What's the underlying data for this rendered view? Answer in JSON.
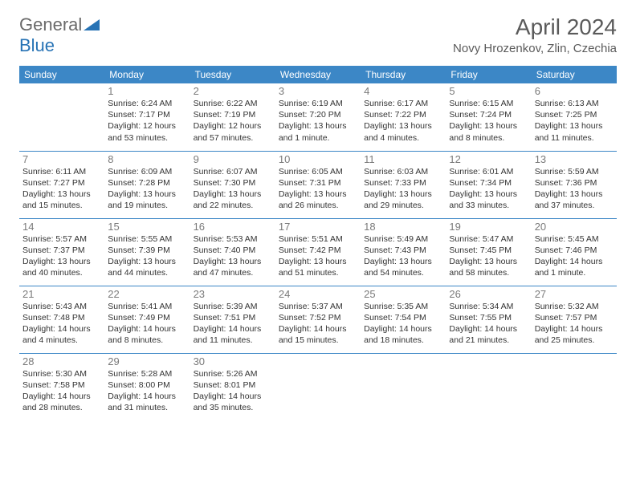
{
  "brand": {
    "part1": "General",
    "part2": "Blue"
  },
  "title": "April 2024",
  "location": "Novy Hrozenkov, Zlin, Czechia",
  "colors": {
    "header_bg": "#3c87c6",
    "header_text": "#ffffff",
    "row_border": "#3c87c6",
    "daynum": "#7a7a7a",
    "body_text": "#333333",
    "title_text": "#5a5a5a",
    "logo_blue": "#2773b5",
    "background": "#ffffff"
  },
  "fonts": {
    "title_size_pt": 21,
    "location_size_pt": 11,
    "dayheader_size_pt": 9,
    "daynum_size_pt": 10,
    "body_size_pt": 8
  },
  "weekdays": [
    "Sunday",
    "Monday",
    "Tuesday",
    "Wednesday",
    "Thursday",
    "Friday",
    "Saturday"
  ],
  "grid": {
    "rows": 5,
    "cols": 7,
    "first_weekday_index": 1,
    "days_in_month": 30
  },
  "days": {
    "1": {
      "sunrise": "6:24 AM",
      "sunset": "7:17 PM",
      "daylight": "12 hours and 53 minutes."
    },
    "2": {
      "sunrise": "6:22 AM",
      "sunset": "7:19 PM",
      "daylight": "12 hours and 57 minutes."
    },
    "3": {
      "sunrise": "6:19 AM",
      "sunset": "7:20 PM",
      "daylight": "13 hours and 1 minute."
    },
    "4": {
      "sunrise": "6:17 AM",
      "sunset": "7:22 PM",
      "daylight": "13 hours and 4 minutes."
    },
    "5": {
      "sunrise": "6:15 AM",
      "sunset": "7:24 PM",
      "daylight": "13 hours and 8 minutes."
    },
    "6": {
      "sunrise": "6:13 AM",
      "sunset": "7:25 PM",
      "daylight": "13 hours and 11 minutes."
    },
    "7": {
      "sunrise": "6:11 AM",
      "sunset": "7:27 PM",
      "daylight": "13 hours and 15 minutes."
    },
    "8": {
      "sunrise": "6:09 AM",
      "sunset": "7:28 PM",
      "daylight": "13 hours and 19 minutes."
    },
    "9": {
      "sunrise": "6:07 AM",
      "sunset": "7:30 PM",
      "daylight": "13 hours and 22 minutes."
    },
    "10": {
      "sunrise": "6:05 AM",
      "sunset": "7:31 PM",
      "daylight": "13 hours and 26 minutes."
    },
    "11": {
      "sunrise": "6:03 AM",
      "sunset": "7:33 PM",
      "daylight": "13 hours and 29 minutes."
    },
    "12": {
      "sunrise": "6:01 AM",
      "sunset": "7:34 PM",
      "daylight": "13 hours and 33 minutes."
    },
    "13": {
      "sunrise": "5:59 AM",
      "sunset": "7:36 PM",
      "daylight": "13 hours and 37 minutes."
    },
    "14": {
      "sunrise": "5:57 AM",
      "sunset": "7:37 PM",
      "daylight": "13 hours and 40 minutes."
    },
    "15": {
      "sunrise": "5:55 AM",
      "sunset": "7:39 PM",
      "daylight": "13 hours and 44 minutes."
    },
    "16": {
      "sunrise": "5:53 AM",
      "sunset": "7:40 PM",
      "daylight": "13 hours and 47 minutes."
    },
    "17": {
      "sunrise": "5:51 AM",
      "sunset": "7:42 PM",
      "daylight": "13 hours and 51 minutes."
    },
    "18": {
      "sunrise": "5:49 AM",
      "sunset": "7:43 PM",
      "daylight": "13 hours and 54 minutes."
    },
    "19": {
      "sunrise": "5:47 AM",
      "sunset": "7:45 PM",
      "daylight": "13 hours and 58 minutes."
    },
    "20": {
      "sunrise": "5:45 AM",
      "sunset": "7:46 PM",
      "daylight": "14 hours and 1 minute."
    },
    "21": {
      "sunrise": "5:43 AM",
      "sunset": "7:48 PM",
      "daylight": "14 hours and 4 minutes."
    },
    "22": {
      "sunrise": "5:41 AM",
      "sunset": "7:49 PM",
      "daylight": "14 hours and 8 minutes."
    },
    "23": {
      "sunrise": "5:39 AM",
      "sunset": "7:51 PM",
      "daylight": "14 hours and 11 minutes."
    },
    "24": {
      "sunrise": "5:37 AM",
      "sunset": "7:52 PM",
      "daylight": "14 hours and 15 minutes."
    },
    "25": {
      "sunrise": "5:35 AM",
      "sunset": "7:54 PM",
      "daylight": "14 hours and 18 minutes."
    },
    "26": {
      "sunrise": "5:34 AM",
      "sunset": "7:55 PM",
      "daylight": "14 hours and 21 minutes."
    },
    "27": {
      "sunrise": "5:32 AM",
      "sunset": "7:57 PM",
      "daylight": "14 hours and 25 minutes."
    },
    "28": {
      "sunrise": "5:30 AM",
      "sunset": "7:58 PM",
      "daylight": "14 hours and 28 minutes."
    },
    "29": {
      "sunrise": "5:28 AM",
      "sunset": "8:00 PM",
      "daylight": "14 hours and 31 minutes."
    },
    "30": {
      "sunrise": "5:26 AM",
      "sunset": "8:01 PM",
      "daylight": "14 hours and 35 minutes."
    }
  },
  "labels": {
    "sunrise_prefix": "Sunrise: ",
    "sunset_prefix": "Sunset: ",
    "daylight_prefix": "Daylight: "
  }
}
